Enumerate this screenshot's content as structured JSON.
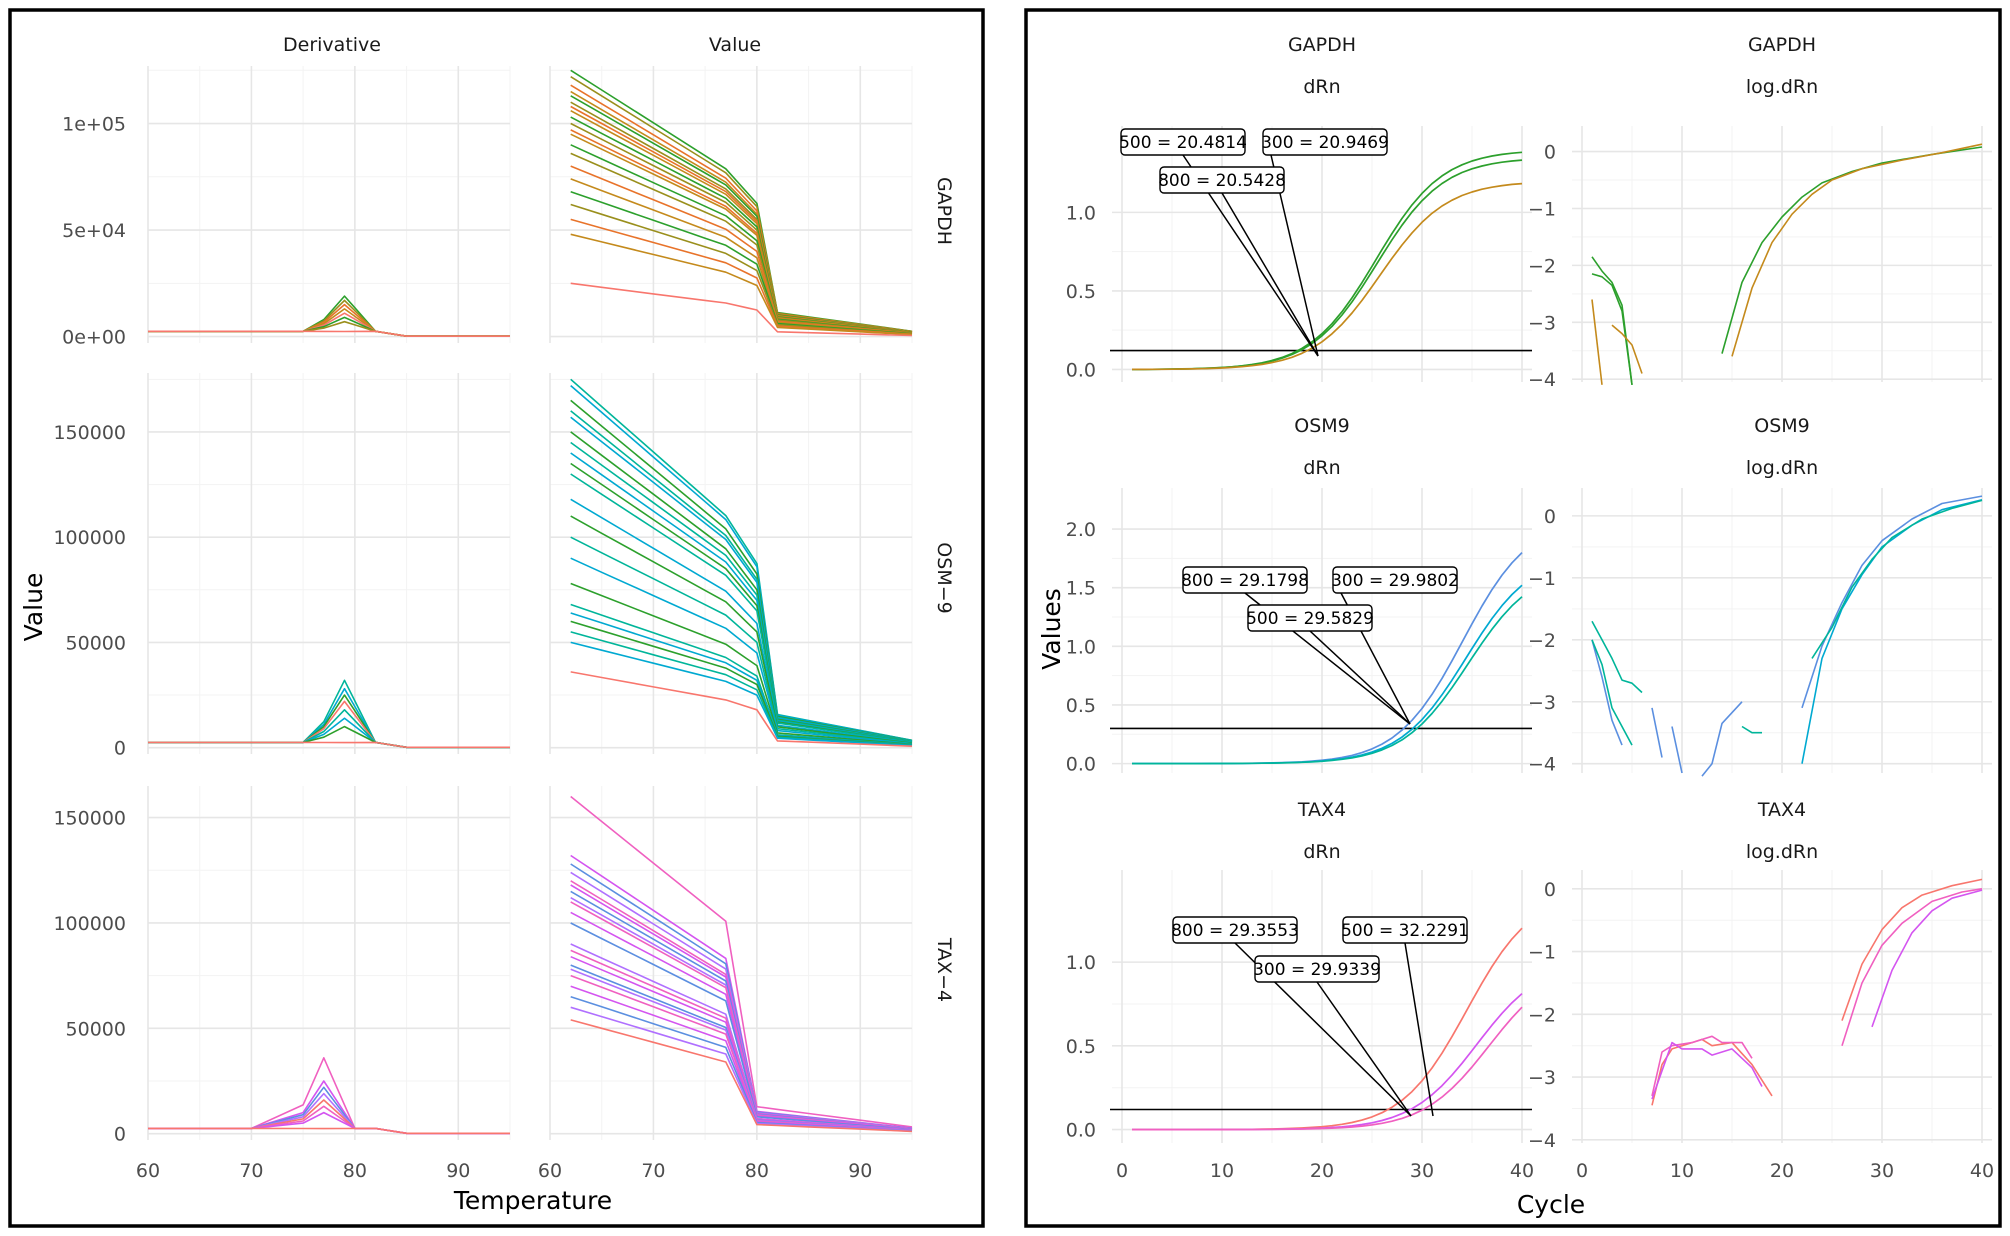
{
  "colors": {
    "green": "#2ca02c",
    "olive": "#9a8f1c",
    "orange": "#e8732a",
    "mustard": "#c48a1c",
    "red": "#f8766d",
    "teal": "#00b59a",
    "cyan": "#00a9d1",
    "blue": "#5b8fe0",
    "pink": "#f060c0",
    "magenta": "#d455f0",
    "purple": "#b070ff",
    "black": "#000000"
  },
  "chart_data": [
    {
      "type": "line",
      "title": "",
      "xlabel": "Temperature",
      "ylabel": "Value",
      "columns": [
        "Derivative",
        "Value"
      ],
      "rows": [
        "GAPDH",
        "OSM−9",
        "TAX−4"
      ],
      "xlim": [
        60,
        95
      ],
      "xticks": [
        "60",
        "70",
        "80",
        "90"
      ],
      "row_ylim": [
        [
          -3000,
          127000
        ],
        [
          -3000,
          178000
        ],
        [
          -3000,
          165000
        ]
      ],
      "row_yticks": [
        [
          [
            0,
            "0e+00"
          ],
          [
            50000,
            "5e+04"
          ],
          [
            100000,
            "1e+05"
          ]
        ],
        [
          [
            0,
            "0"
          ],
          [
            50000,
            "50000"
          ],
          [
            100000,
            "100000"
          ],
          [
            150000,
            "150000"
          ]
        ],
        [
          [
            0,
            "0"
          ],
          [
            50000,
            "50000"
          ],
          [
            100000,
            "100000"
          ],
          [
            150000,
            "150000"
          ]
        ]
      ],
      "melt_temperatures": [
        62,
        65,
        70,
        75,
        77,
        79,
        80,
        82,
        85,
        90,
        95
      ],
      "derivative_temperatures": [
        60,
        65,
        70,
        75,
        77,
        79,
        80,
        82,
        85,
        90,
        95
      ],
      "gapdh_value_peaks": [
        125000,
        122000,
        118000,
        115000,
        113000,
        110000,
        108000,
        106000,
        103000,
        100000,
        97000,
        95000,
        90000,
        86000,
        80000,
        74000,
        68000,
        62000,
        55000,
        48000,
        25000
      ],
      "gapdh_derivative_peaks": [
        19000,
        17000,
        15000,
        13000,
        11000,
        9000,
        7000
      ],
      "osm9_value_peaks": [
        175000,
        172000,
        165000,
        160000,
        157000,
        150000,
        145000,
        140000,
        135000,
        130000,
        118000,
        110000,
        100000,
        90000,
        78000,
        68000,
        64000,
        60000,
        55000,
        50000,
        36000
      ],
      "osm9_derivative_peaks": [
        32000,
        28000,
        25000,
        22000,
        18000,
        14000,
        10000
      ],
      "tax4_value_peaks": [
        160000,
        132000,
        128000,
        124000,
        120000,
        118000,
        115000,
        112000,
        110000,
        105000,
        100000,
        90000,
        87000,
        84000,
        80000,
        78000,
        75000,
        70000,
        65000,
        60000,
        54000
      ],
      "tax4_derivative_peaks": [
        36000,
        25000,
        22000,
        19000,
        16000,
        13000,
        10000
      ]
    },
    {
      "type": "line",
      "title": "",
      "xlabel": "Cycle",
      "ylabel": "Values",
      "panels": [
        {
          "strip": [
            "GAPDH",
            "dRn"
          ],
          "ylim": [
            -0.08,
            1.55
          ],
          "yticks": [
            0.0,
            0.5,
            1.0
          ],
          "ytick_labels": [
            "0.0",
            "0.5",
            "1.0"
          ],
          "threshold": 0.12,
          "series": [
            {
              "ct": 20.9,
              "end": 1.4
            },
            {
              "ct": 21.0,
              "end": 1.35
            },
            {
              "ct": 21.3,
              "end": 1.2
            }
          ],
          "labels": [
            {
              "text": "500 = 20.4814"
            },
            {
              "text": "300 = 20.9469"
            },
            {
              "text": "800 = 20.5428"
            }
          ]
        },
        {
          "strip": [
            "GAPDH",
            "log.dRn"
          ],
          "ylim": [
            -4.05,
            0.45
          ],
          "yticks": [
            0,
            -1,
            -2,
            -3,
            -4
          ],
          "ytick_labels": [
            "0",
            "−1",
            "−2",
            "−3",
            "−4"
          ]
        },
        {
          "strip": [
            "OSM9",
            "dRn"
          ],
          "ylim": [
            -0.08,
            2.35
          ],
          "yticks": [
            0.0,
            0.5,
            1.0,
            1.5,
            2.0
          ],
          "ytick_labels": [
            "0.0",
            "0.5",
            "1.0",
            "1.5",
            "2.0"
          ],
          "threshold": 0.3,
          "series": [
            {
              "ct": 29.6,
              "end": 2.1
            },
            {
              "ct": 29.9,
              "end": 1.8
            },
            {
              "ct": 30.1,
              "end": 1.7
            }
          ],
          "labels": [
            {
              "text": "800 = 29.1798"
            },
            {
              "text": "300 = 29.9802"
            },
            {
              "text": "500 = 29.5829"
            }
          ]
        },
        {
          "strip": [
            "OSM9",
            "log.dRn"
          ],
          "ylim": [
            -4.15,
            0.45
          ],
          "yticks": [
            0,
            -1,
            -2,
            -3,
            -4
          ],
          "ytick_labels": [
            "0",
            "−1",
            "−2",
            "−3",
            "−4"
          ]
        },
        {
          "strip": [
            "TAX4",
            "dRn"
          ],
          "ylim": [
            -0.08,
            1.55
          ],
          "yticks": [
            0.0,
            0.5,
            1.0
          ],
          "ytick_labels": [
            "0.0",
            "0.5",
            "1.0"
          ],
          "threshold": 0.12,
          "series": [
            {
              "ct": 30.0,
              "end": 1.43
            },
            {
              "ct": 31.0,
              "end": 1.02
            },
            {
              "ct": 32.2,
              "end": 1.0
            }
          ],
          "labels": [
            {
              "text": "800 = 29.3553"
            },
            {
              "text": "500 = 32.2291"
            },
            {
              "text": "300 = 29.9339"
            }
          ]
        },
        {
          "strip": [
            "TAX4",
            "log.dRn"
          ],
          "ylim": [
            -4.05,
            0.3
          ],
          "yticks": [
            0,
            -1,
            -2,
            -3,
            -4
          ],
          "ytick_labels": [
            "0",
            "−1",
            "−2",
            "−3",
            "−4"
          ]
        }
      ],
      "xlim": [
        -1,
        41
      ],
      "xticks": [
        0,
        10,
        20,
        30,
        40
      ]
    }
  ]
}
